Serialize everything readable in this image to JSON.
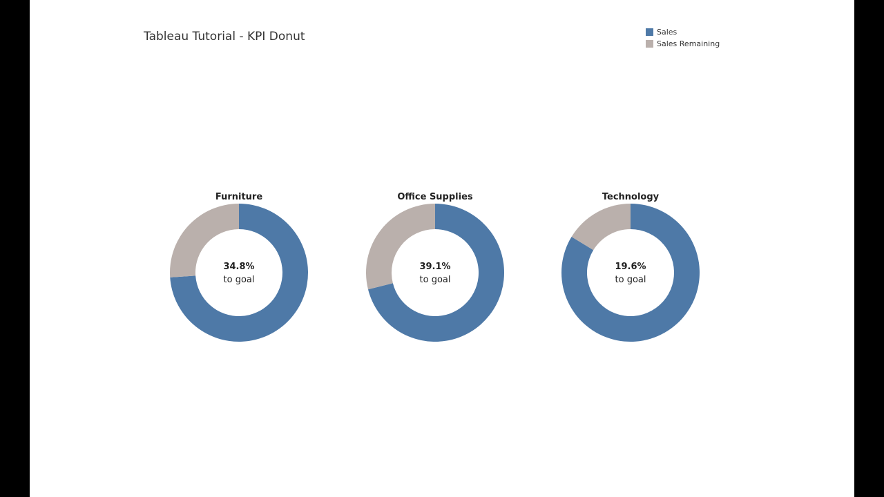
{
  "page": {
    "title": "Tableau Tutorial - KPI Donut"
  },
  "legend": {
    "items": [
      {
        "label": "Sales",
        "color": "#4e79a7"
      },
      {
        "label": "Sales Remaining",
        "color": "#bab0ac"
      }
    ]
  },
  "colors": {
    "sales": "#4e79a7",
    "remaining": "#bab0ac",
    "background": "#ffffff",
    "frame": "#000000"
  },
  "chart_data": [
    {
      "type": "pie",
      "title": "Furniture",
      "slices": [
        {
          "label": "Sales",
          "value": 73.9
        },
        {
          "label": "Sales Remaining",
          "value": 26.1
        }
      ],
      "center_value": "34.8%",
      "center_caption": "to goal"
    },
    {
      "type": "pie",
      "title": "Office Supplies",
      "slices": [
        {
          "label": "Sales",
          "value": 71.1
        },
        {
          "label": "Sales Remaining",
          "value": 28.9
        }
      ],
      "center_value": "39.1%",
      "center_caption": "to goal"
    },
    {
      "type": "pie",
      "title": "Technology",
      "slices": [
        {
          "label": "Sales",
          "value": 83.7
        },
        {
          "label": "Sales Remaining",
          "value": 16.3
        }
      ],
      "center_value": "19.6%",
      "center_caption": "to goal"
    }
  ]
}
